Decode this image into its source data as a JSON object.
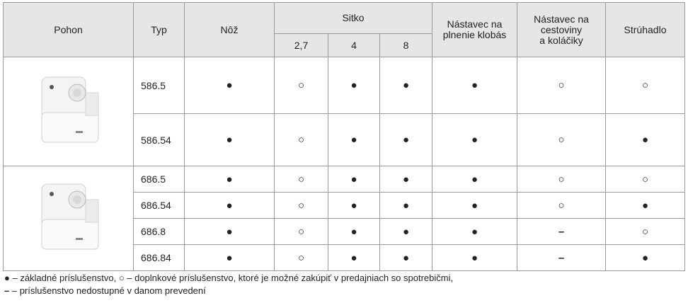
{
  "header": {
    "pohon": "Pohon",
    "typ": "Typ",
    "noz": "Nôž",
    "sitko": "Sitko",
    "sieve_sizes": [
      "2,7",
      "4",
      "8"
    ],
    "klobasy": "Nástavec na\nplnenie klobás",
    "cestoviny": "Nástavec na\ncestoviny\na koláčiky",
    "struhadlo": "Strúhadlo"
  },
  "groups": [
    {
      "rows": [
        {
          "type": "586.5",
          "values": [
            "●",
            "○",
            "●",
            "●",
            "●",
            "○",
            "○"
          ]
        },
        {
          "type": "586.54",
          "values": [
            "●",
            "○",
            "●",
            "●",
            "●",
            "○",
            "●"
          ]
        }
      ]
    },
    {
      "rows": [
        {
          "type": "686.5",
          "values": [
            "●",
            "○",
            "●",
            "●",
            "●",
            "○",
            "○"
          ]
        },
        {
          "type": "686.54",
          "values": [
            "●",
            "○",
            "●",
            "●",
            "●",
            "○",
            "●"
          ]
        },
        {
          "type": "686.8",
          "values": [
            "●",
            "○",
            "●",
            "●",
            "●",
            "–",
            "○"
          ]
        },
        {
          "type": "686.84",
          "values": [
            "●",
            "○",
            "●",
            "●",
            "●",
            "–",
            "●"
          ]
        }
      ]
    }
  ],
  "legend": [
    {
      "symbol": "●",
      "text": " – základné príslušenstvo, "
    },
    {
      "symbol": "○",
      "text": " – doplnkové príslušenstvo, ktoré je možné zakúpiť v predajniach so spotrebičmi,"
    },
    {
      "symbol": "–",
      "text": " – príslušenstvo nedostupné v danom prevedení"
    }
  ]
}
